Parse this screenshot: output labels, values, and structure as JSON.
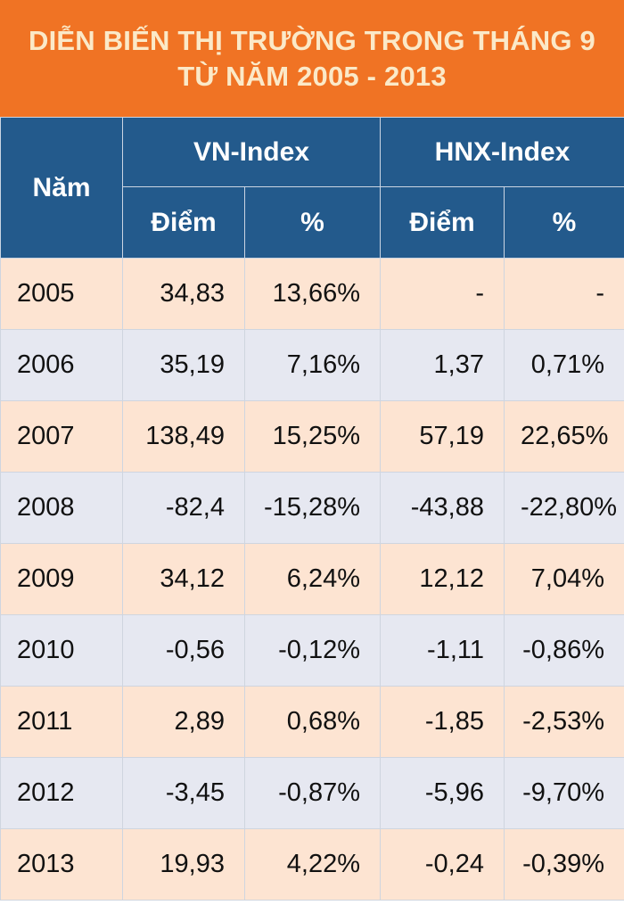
{
  "chart_data": {
    "type": "table",
    "title": "DIỄN BIẾN THỊ TRƯỜNG TRONG THÁNG 9",
    "subtitle": "TỪ NĂM 2005 - 2013",
    "header": {
      "year": "Năm",
      "vn_index": "VN-Index",
      "hnx_index": "HNX-Index",
      "points": "Điểm",
      "percent": "%"
    },
    "rows": [
      {
        "year": "2005",
        "vn_points": "34,83",
        "vn_pct": "13,66%",
        "hnx_points": "-",
        "hnx_pct": "-"
      },
      {
        "year": "2006",
        "vn_points": "35,19",
        "vn_pct": "7,16%",
        "hnx_points": "1,37",
        "hnx_pct": "0,71%"
      },
      {
        "year": "2007",
        "vn_points": "138,49",
        "vn_pct": "15,25%",
        "hnx_points": "57,19",
        "hnx_pct": "22,65%"
      },
      {
        "year": "2008",
        "vn_points": "-82,4",
        "vn_pct": "-15,28%",
        "hnx_points": "-43,88",
        "hnx_pct": "-22,80%"
      },
      {
        "year": "2009",
        "vn_points": "34,12",
        "vn_pct": "6,24%",
        "hnx_points": "12,12",
        "hnx_pct": "7,04%"
      },
      {
        "year": "2010",
        "vn_points": "-0,56",
        "vn_pct": "-0,12%",
        "hnx_points": "-1,11",
        "hnx_pct": "-0,86%"
      },
      {
        "year": "2011",
        "vn_points": "2,89",
        "vn_pct": "0,68%",
        "hnx_points": "-1,85",
        "hnx_pct": "-2,53%"
      },
      {
        "year": "2012",
        "vn_points": "-3,45",
        "vn_pct": "-0,87%",
        "hnx_points": "-5,96",
        "hnx_pct": "-9,70%"
      },
      {
        "year": "2013",
        "vn_points": "19,93",
        "vn_pct": "4,22%",
        "hnx_points": "-0,24",
        "hnx_pct": "-0,39%"
      }
    ]
  },
  "colors": {
    "title_bg": "#f07324",
    "title_text": "#fbe9c8",
    "header_bg": "#235a8c",
    "row_odd": "#fde4d2",
    "row_even": "#e6e8f1"
  }
}
